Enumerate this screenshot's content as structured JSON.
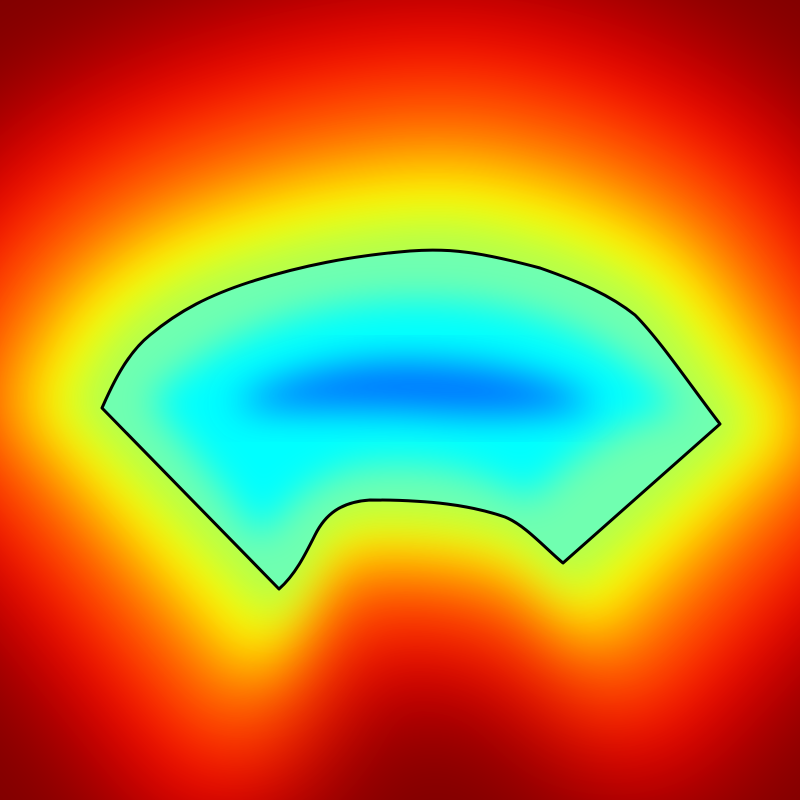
{
  "image": {
    "description_label": "",
    "colormap": "jet",
    "colormap_stops": [
      "#800000",
      "#ff0000",
      "#ffff00",
      "#00ffff",
      "#0080ff"
    ],
    "background_color": "#800000",
    "contour_color": "#000000"
  }
}
